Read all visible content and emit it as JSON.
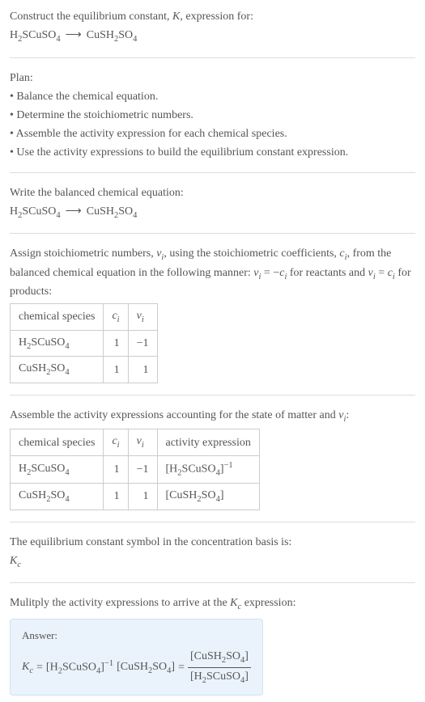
{
  "colors": {
    "text": "#555555",
    "border": "#dddddd",
    "tableBorder": "#cccccc",
    "answerBg": "#eaf3fb",
    "answerBorder": "#cfe2f1"
  },
  "fontsize": {
    "body": 14,
    "sub": 10.5
  },
  "intro": {
    "line1": "Construct the equilibrium constant, K, expression for:",
    "reaction_lhs": "H2SCuSO4",
    "reaction_arrow": "⟶",
    "reaction_rhs": "CuSH2SO4"
  },
  "plan": {
    "header": "Plan:",
    "bullets": [
      "Balance the chemical equation.",
      "Determine the stoichiometric numbers.",
      "Assemble the activity expression for each chemical species.",
      "Use the activity expressions to build the equilibrium constant expression."
    ]
  },
  "balanced": {
    "line": "Write the balanced chemical equation:",
    "lhs": "H2SCuSO4",
    "arrow": "⟶",
    "rhs": "CuSH2SO4"
  },
  "assign": {
    "text1": "Assign stoichiometric numbers, ",
    "nu_i": "νi",
    "text2": ", using the stoichiometric coefficients, ",
    "c_i": "ci",
    "text3": ", from the balanced chemical equation in the following manner: ",
    "eq1": "νi = −ci",
    "for1": " for reactants and ",
    "eq2": "νi = ci",
    "for2": " for products:"
  },
  "table1": {
    "headers": [
      "chemical species",
      "ci",
      "νi"
    ],
    "rows": [
      {
        "species": "H2SCuSO4",
        "ci": "1",
        "nui": "−1"
      },
      {
        "species": "CuSH2SO4",
        "ci": "1",
        "nui": "1"
      }
    ]
  },
  "assemble": {
    "line": "Assemble the activity expressions accounting for the state of matter and νi:"
  },
  "table2": {
    "headers": [
      "chemical species",
      "ci",
      "νi",
      "activity expression"
    ],
    "rows": [
      {
        "species": "H2SCuSO4",
        "ci": "1",
        "nui": "−1",
        "act": "[H2SCuSO4]−1"
      },
      {
        "species": "CuSH2SO4",
        "ci": "1",
        "nui": "1",
        "act": "[CuSH2SO4]"
      }
    ]
  },
  "symbolLine": {
    "l1": "The equilibrium constant symbol in the concentration basis is:",
    "kc": "Kc"
  },
  "multiply": "Mulitply the activity expressions to arrive at the Kc expression:",
  "answer": {
    "label": "Answer:",
    "lhs": "Kc",
    "term1": "[H2SCuSO4]−1",
    "term2": "[CuSH2SO4]",
    "eq": "=",
    "frac_num": "[CuSH2SO4]",
    "frac_den": "[H2SCuSO4]"
  }
}
